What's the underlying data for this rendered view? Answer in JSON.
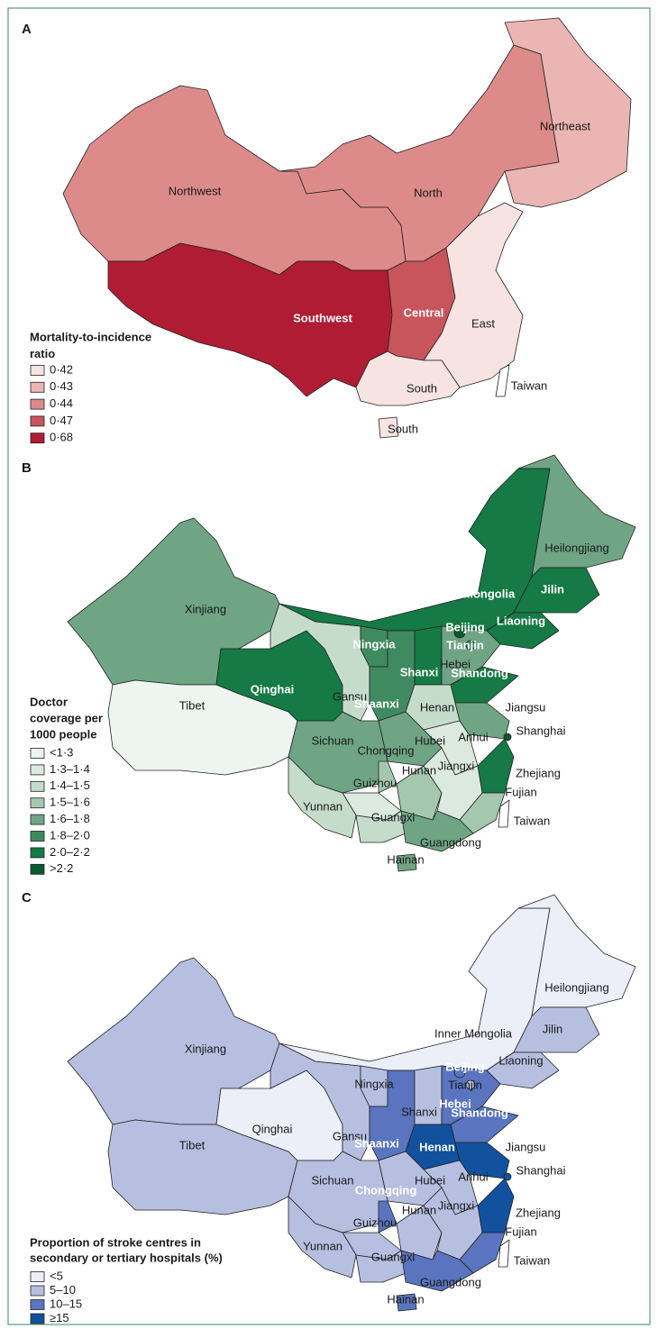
{
  "panels": [
    {
      "label": "A",
      "legend_title": [
        "Mortality-to-incidence",
        "ratio"
      ],
      "legend": [
        {
          "label": "0·42",
          "color": "#f7e4e2"
        },
        {
          "label": "0·43",
          "color": "#ebb5b3"
        },
        {
          "label": "0·44",
          "color": "#dc8b8a"
        },
        {
          "label": "0·47",
          "color": "#c8555c"
        },
        {
          "label": "0·68",
          "color": "#b01c33"
        }
      ],
      "regions": [
        {
          "name": "Northwest",
          "color": "#dc8b8a"
        },
        {
          "name": "North",
          "color": "#dc8b8a"
        },
        {
          "name": "Northeast",
          "color": "#ebb5b3"
        },
        {
          "name": "Southwest",
          "color": "#b01c33"
        },
        {
          "name": "Central",
          "color": "#c8555c"
        },
        {
          "name": "East",
          "color": "#f7e4e2"
        },
        {
          "name": "South",
          "color": "#f7e4e2"
        },
        {
          "name": "South",
          "color": "#f7e4e2"
        },
        {
          "name": "Taiwan",
          "color": "#ffffff"
        }
      ]
    },
    {
      "label": "B",
      "legend_title": [
        "Doctor",
        "coverage per",
        "1000 people"
      ],
      "legend": [
        {
          "label": "<1·3",
          "color": "#eef4ef"
        },
        {
          "label": "1·3–1·4",
          "color": "#dbe9df"
        },
        {
          "label": "1·4–1·5",
          "color": "#c5dccb"
        },
        {
          "label": "1·5–1·6",
          "color": "#a3c8ae"
        },
        {
          "label": "1·6–1·8",
          "color": "#6fa585"
        },
        {
          "label": "1·8–2·0",
          "color": "#3f8a60"
        },
        {
          "label": "2·0–2·2",
          "color": "#157a45"
        },
        {
          "label": ">2·2",
          "color": "#0b5a2e"
        }
      ],
      "regions": [
        {
          "name": "Xinjiang",
          "color": "#6fa585"
        },
        {
          "name": "Tibet",
          "color": "#eef4ef"
        },
        {
          "name": "Qinghai",
          "color": "#157a45"
        },
        {
          "name": "Gansu",
          "color": "#c5dccb"
        },
        {
          "name": "Inner Mongolia",
          "color": "#157a45"
        },
        {
          "name": "Heilongjiang",
          "color": "#6fa585"
        },
        {
          "name": "Jilin",
          "color": "#157a45"
        },
        {
          "name": "Liaoning",
          "color": "#157a45"
        },
        {
          "name": "Ningxia",
          "color": "#3f8a60"
        },
        {
          "name": "Shaanxi",
          "color": "#3f8a60"
        },
        {
          "name": "Shanxi",
          "color": "#157a45"
        },
        {
          "name": "Hebei",
          "color": "#6fa585"
        },
        {
          "name": "Beijing",
          "color": "#0b5a2e"
        },
        {
          "name": "Tianjin",
          "color": "#3f8a60"
        },
        {
          "name": "Shandong",
          "color": "#157a45"
        },
        {
          "name": "Henan",
          "color": "#c5dccb"
        },
        {
          "name": "Jiangsu",
          "color": "#6fa585"
        },
        {
          "name": "Shanghai",
          "color": "#0b5a2e"
        },
        {
          "name": "Anhui",
          "color": "#dbe9df"
        },
        {
          "name": "Zhejiang",
          "color": "#157a45"
        },
        {
          "name": "Hubei",
          "color": "#6fa585"
        },
        {
          "name": "Sichuan",
          "color": "#6fa585"
        },
        {
          "name": "Chongqing",
          "color": "#a3c8ae"
        },
        {
          "name": "Hunan",
          "color": "#a3c8ae"
        },
        {
          "name": "Jiangxi",
          "color": "#dbe9df"
        },
        {
          "name": "Fujian",
          "color": "#a3c8ae"
        },
        {
          "name": "Guizhou",
          "color": "#dbe9df"
        },
        {
          "name": "Yunnan",
          "color": "#c5dccb"
        },
        {
          "name": "Guangxi",
          "color": "#c5dccb"
        },
        {
          "name": "Guangdong",
          "color": "#6fa585"
        },
        {
          "name": "Hainan",
          "color": "#6fa585"
        },
        {
          "name": "Taiwan",
          "color": "#ffffff"
        }
      ]
    },
    {
      "label": "C",
      "legend_title": [
        "Proportion of stroke centres in",
        "secondary or tertiary hospitals (%)"
      ],
      "legend": [
        {
          "label": "<5",
          "color": "#eceef8"
        },
        {
          "label": "5–10",
          "color": "#b6bfe0"
        },
        {
          "label": "10–15",
          "color": "#5a74bf"
        },
        {
          "label": "≥15",
          "color": "#12519e"
        }
      ],
      "regions": [
        {
          "name": "Xinjiang",
          "color": "#b6bfe0"
        },
        {
          "name": "Tibet",
          "color": "#b6bfe0"
        },
        {
          "name": "Qinghai",
          "color": "#eceef8"
        },
        {
          "name": "Gansu",
          "color": "#b6bfe0"
        },
        {
          "name": "Inner Mongolia",
          "color": "#eceef8"
        },
        {
          "name": "Heilongjiang",
          "color": "#eceef8"
        },
        {
          "name": "Jilin",
          "color": "#b6bfe0"
        },
        {
          "name": "Liaoning",
          "color": "#b6bfe0"
        },
        {
          "name": "Ningxia",
          "color": "#b6bfe0"
        },
        {
          "name": "Shaanxi",
          "color": "#5a74bf"
        },
        {
          "name": "Shanxi",
          "color": "#b6bfe0"
        },
        {
          "name": "Hebei",
          "color": "#5a74bf"
        },
        {
          "name": "Beijing",
          "color": "#5a74bf"
        },
        {
          "name": "Tianjin",
          "color": "#b6bfe0"
        },
        {
          "name": "Shandong",
          "color": "#5a74bf"
        },
        {
          "name": "Henan",
          "color": "#12519e"
        },
        {
          "name": "Jiangsu",
          "color": "#12519e"
        },
        {
          "name": "Shanghai",
          "color": "#12519e"
        },
        {
          "name": "Anhui",
          "color": "#b6bfe0"
        },
        {
          "name": "Zhejiang",
          "color": "#12519e"
        },
        {
          "name": "Hubei",
          "color": "#b6bfe0"
        },
        {
          "name": "Sichuan",
          "color": "#b6bfe0"
        },
        {
          "name": "Chongqing",
          "color": "#5a74bf"
        },
        {
          "name": "Hunan",
          "color": "#b6bfe0"
        },
        {
          "name": "Jiangxi",
          "color": "#b6bfe0"
        },
        {
          "name": "Fujian",
          "color": "#5a74bf"
        },
        {
          "name": "Guizhou",
          "color": "#b6bfe0"
        },
        {
          "name": "Yunnan",
          "color": "#b6bfe0"
        },
        {
          "name": "Guangxi",
          "color": "#b6bfe0"
        },
        {
          "name": "Guangdong",
          "color": "#5a74bf"
        },
        {
          "name": "Hainan",
          "color": "#5a74bf"
        },
        {
          "name": "Taiwan",
          "color": "#ffffff"
        }
      ]
    }
  ]
}
